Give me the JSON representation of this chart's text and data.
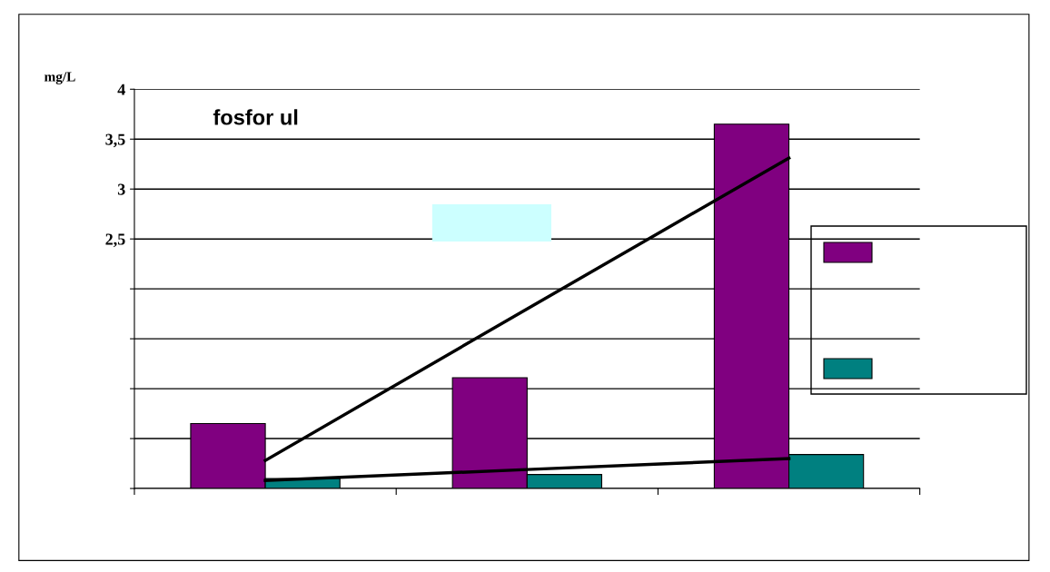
{
  "chart_data": {
    "type": "bar",
    "title": "fosfor ul",
    "ylabel": "mg/L",
    "categories": [
      null,
      null,
      null
    ],
    "series": [
      {
        "color": "#800080",
        "values": [
          0.65,
          1.11,
          3.65
        ]
      },
      {
        "color": "#008080",
        "values": [
          0.1,
          0.14,
          0.34
        ]
      },
      {
        "type": "line",
        "color": "#000000",
        "values": [
          0.28,
          1.8,
          3.31
        ]
      },
      {
        "type": "line",
        "color": "#000000",
        "values": [
          0.08,
          0.19,
          0.3
        ]
      }
    ],
    "ylim": [
      0,
      4
    ],
    "yticks": [
      {
        "value": 0,
        "label": null
      },
      {
        "value": 0.5,
        "label": null
      },
      {
        "value": 1,
        "label": null
      },
      {
        "value": 1.5,
        "label": null
      },
      {
        "value": 2,
        "label": null
      },
      {
        "value": 2.5,
        "label": "2,5"
      },
      {
        "value": 3,
        "label": "3"
      },
      {
        "value": 3.5,
        "label": "3,5"
      },
      {
        "value": 4,
        "label": "4"
      }
    ],
    "grid": "y"
  }
}
